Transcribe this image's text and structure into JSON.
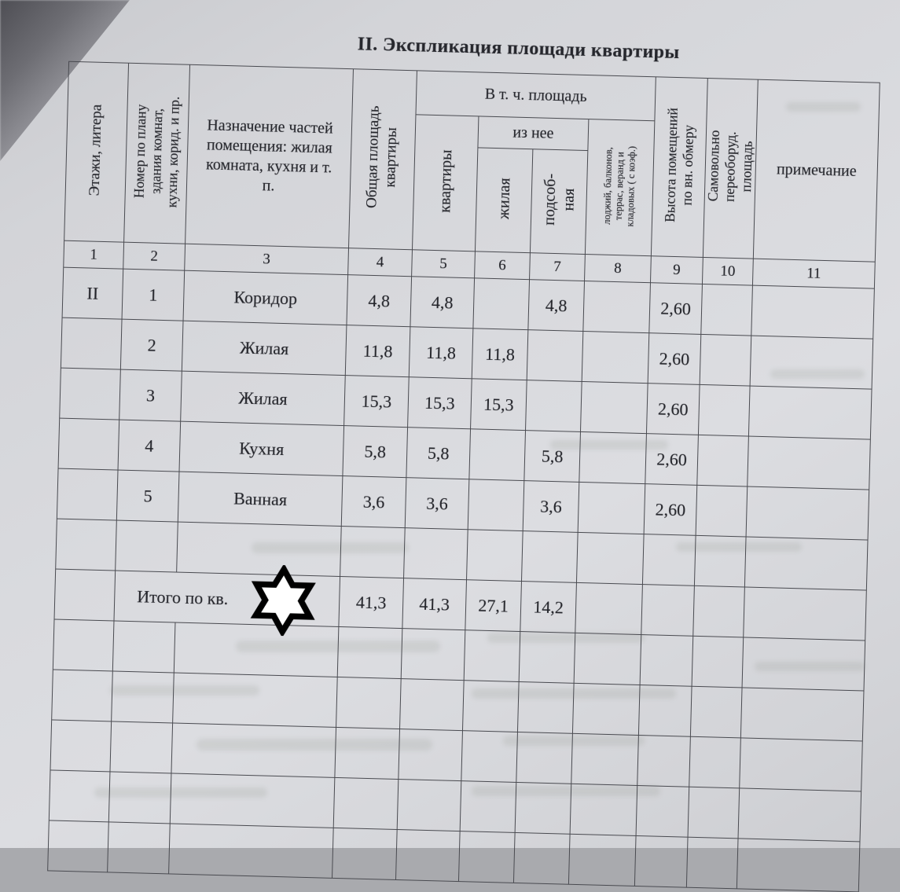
{
  "page": {
    "title": "II. Экспликация площади квартиры",
    "kind": "scanned paper form"
  },
  "colors": {
    "paper": "#d9dade",
    "grid_line": "#494a50",
    "ink": "#23242a",
    "redaction_fill": "#ffffff",
    "redaction_outline": "#000000"
  },
  "table": {
    "headers": {
      "floors": "Этажи, литера",
      "room_number": "Номер по плану здания комнат, кухни, корид. и пр.",
      "purpose": "Назначение частей помещения: жилая комната, кухня и т. п.",
      "total_area": "Общая площадь квартиры",
      "incl_area_group": "В т. ч. площадь",
      "apartment": "квартиры",
      "of_it_group": "из нее",
      "living": "жилая",
      "auxiliary": "подсоб-ная",
      "loggias": "лоджий, балконов, террас, веранд и кладовых ( с коэф.)",
      "height": "Высота помещений по вн. обмеру",
      "unauthorized": "Самовольно переоборуд. площадь",
      "note": "примечание"
    },
    "column_numbers": [
      "1",
      "2",
      "3",
      "4",
      "5",
      "6",
      "7",
      "8",
      "9",
      "10",
      "11"
    ],
    "rows": [
      [
        "II",
        "1",
        "Коридор",
        "4,8",
        "4,8",
        "",
        "4,8",
        "",
        "2,60",
        "",
        ""
      ],
      [
        "",
        "2",
        "Жилая",
        "11,8",
        "11,8",
        "11,8",
        "",
        "",
        "2,60",
        "",
        ""
      ],
      [
        "",
        "3",
        "Жилая",
        "15,3",
        "15,3",
        "15,3",
        "",
        "",
        "2,60",
        "",
        ""
      ],
      [
        "",
        "4",
        "Кухня",
        "5,8",
        "5,8",
        "",
        "5,8",
        "",
        "2,60",
        "",
        ""
      ],
      [
        "",
        "5",
        "Ванная",
        "3,6",
        "3,6",
        "",
        "3,6",
        "",
        "2,60",
        "",
        ""
      ],
      [
        "",
        "",
        "",
        "",
        "",
        "",
        "",
        "",
        "",
        "",
        ""
      ]
    ],
    "total_row": {
      "floor": "",
      "label": "Итого по кв.",
      "redaction_icon": "six-pointed-star",
      "values": [
        "41,3",
        "41,3",
        "27,1",
        "14,2",
        "",
        "",
        "",
        ""
      ]
    },
    "empty_rows_below": 5
  }
}
